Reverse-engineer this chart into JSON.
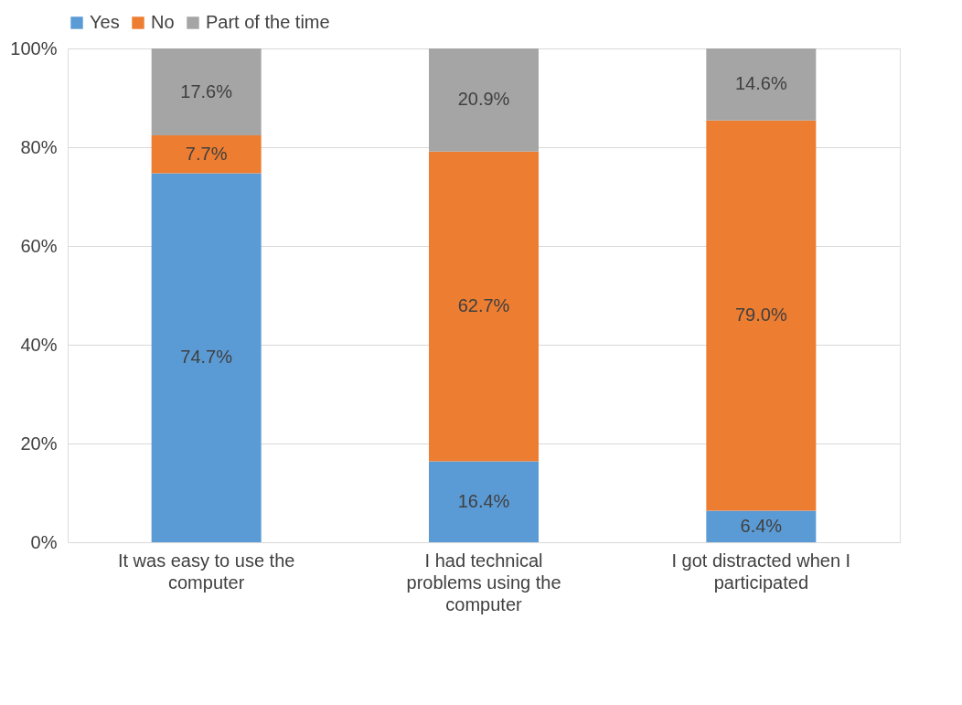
{
  "chart_data": {
    "type": "bar",
    "stacked": true,
    "categories": [
      "It was easy to use the computer",
      "I had technical problems using the computer",
      "I got distracted when I participated"
    ],
    "series": [
      {
        "name": "Yes",
        "color": "#5b9bd5",
        "values": [
          74.7,
          16.4,
          6.4
        ],
        "value_labels": [
          "74.7%",
          "16.4%",
          "6.4%"
        ]
      },
      {
        "name": "No",
        "color": "#ed7d31",
        "values": [
          7.7,
          62.7,
          79.0
        ],
        "value_labels": [
          "7.7%",
          "62.7%",
          "79.0%"
        ]
      },
      {
        "name": "Part of the time",
        "color": "#a5a5a5",
        "values": [
          17.6,
          20.9,
          14.6
        ],
        "value_labels": [
          "17.6%",
          "20.9%",
          "14.6%"
        ]
      }
    ],
    "ylim": [
      0,
      100
    ],
    "yticks": [
      {
        "value": 0,
        "label": "0%"
      },
      {
        "value": 20,
        "label": "20%"
      },
      {
        "value": 40,
        "label": "40%"
      },
      {
        "value": 60,
        "label": "60%"
      },
      {
        "value": 80,
        "label": "80%"
      },
      {
        "value": 100,
        "label": "100%"
      }
    ],
    "grid": "y",
    "legend": "top"
  }
}
